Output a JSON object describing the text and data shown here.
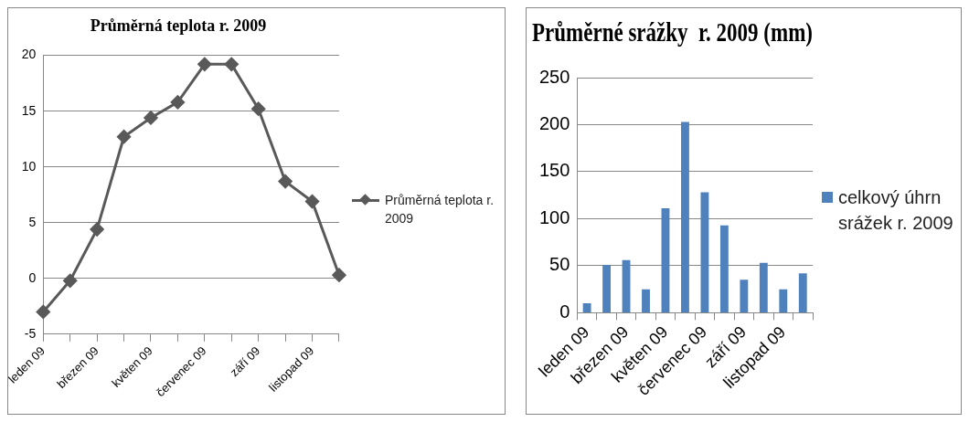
{
  "chart_data": [
    {
      "type": "line",
      "title": "Průměrná teplota r. 2009",
      "categories": [
        "leden 09",
        null,
        "březen 09",
        null,
        "květen 09",
        null,
        "červenec 09",
        null,
        "září 09",
        null,
        "listopad 09",
        null
      ],
      "series": [
        {
          "name": "Průměrná teplota r. 2009",
          "color": "#595959",
          "values": [
            -3,
            -0.2,
            4.4,
            12.7,
            14.4,
            15.8,
            19.2,
            19.2,
            15.2,
            8.7,
            6.9,
            0.3
          ]
        }
      ],
      "ylim": [
        -5,
        20
      ],
      "yticks": [
        -5,
        0,
        5,
        10,
        15,
        20
      ],
      "grid": "y",
      "legend": "right",
      "marker": "diamond",
      "line_style": "solid"
    },
    {
      "type": "bar",
      "title": "Průměrné srážky  r. 2009 (mm)",
      "categories": [
        "leden 09",
        null,
        "březen 09",
        null,
        "květen 09",
        null,
        "červenec 09",
        null,
        "září 09",
        null,
        "listopad 09",
        null
      ],
      "series": [
        {
          "name": "celkový úhrn srážek r. 2009",
          "color": "#4f81bd",
          "values": [
            10,
            51,
            56,
            25,
            111,
            203,
            128,
            93,
            35,
            53,
            25,
            42
          ]
        }
      ],
      "ylim": [
        0,
        250
      ],
      "yticks": [
        0,
        50,
        100,
        150,
        200,
        250
      ],
      "grid": "y",
      "legend": "right"
    }
  ]
}
